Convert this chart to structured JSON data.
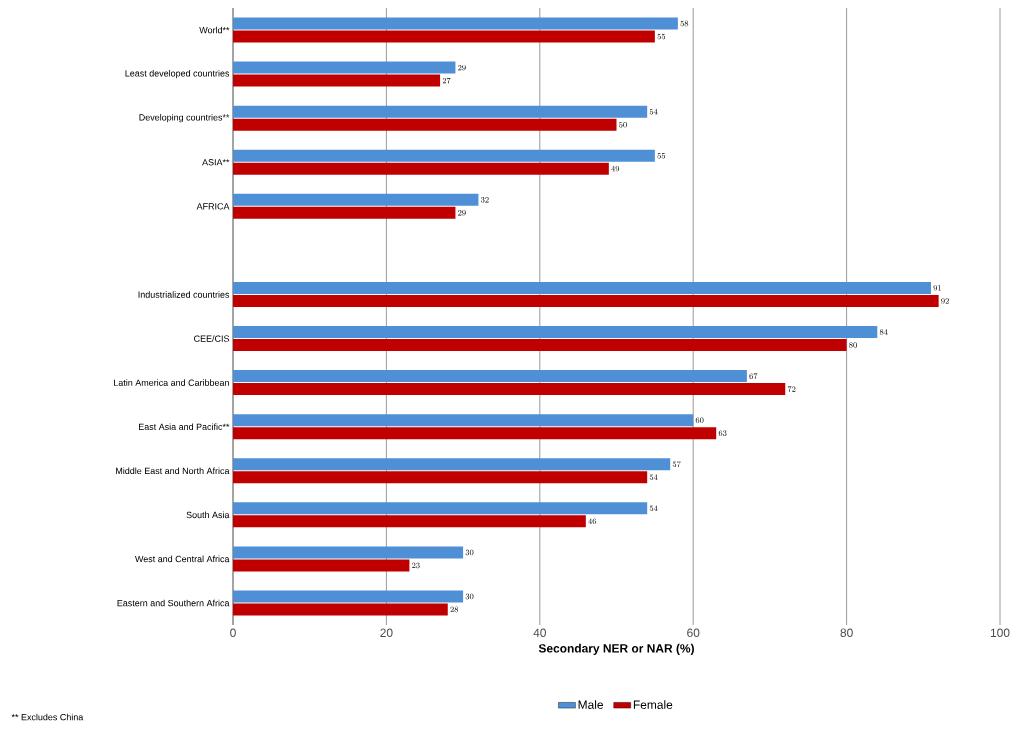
{
  "chart_data": {
    "type": "bar",
    "orientation": "horizontal",
    "xlabel": "Secondary NER or NAR (%)",
    "categories": [
      "World**",
      "Least developed countries",
      "Developing countries**",
      "ASIA**",
      "AFRICA",
      null,
      "Industrialized countries",
      "CEE/CIS",
      "Latin America and Caribbean",
      "East Asia and Pacific**",
      "Middle East and North Africa",
      "South Asia",
      "West and Central Africa",
      "Eastern and Southern Africa"
    ],
    "series": [
      {
        "name": "Male",
        "color": "#4f8fd6",
        "values": [
          58,
          29,
          54,
          55,
          32,
          null,
          91,
          84,
          67,
          60,
          57,
          54,
          30,
          30
        ]
      },
      {
        "name": "Female",
        "color": "#c00000",
        "values": [
          55,
          27,
          50,
          49,
          29,
          null,
          92,
          80,
          72,
          63,
          54,
          46,
          23,
          28
        ]
      }
    ],
    "xlim": [
      0,
      100
    ],
    "xticks": [
      0,
      20,
      40,
      60,
      80,
      100
    ],
    "grid": "x",
    "legend": "bottom",
    "data_labels": true,
    "annotations": [
      "** Excludes China"
    ]
  }
}
